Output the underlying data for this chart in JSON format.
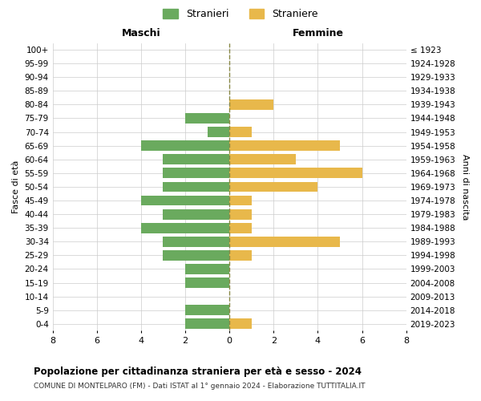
{
  "age_groups": [
    "0-4",
    "5-9",
    "10-14",
    "15-19",
    "20-24",
    "25-29",
    "30-34",
    "35-39",
    "40-44",
    "45-49",
    "50-54",
    "55-59",
    "60-64",
    "65-69",
    "70-74",
    "75-79",
    "80-84",
    "85-89",
    "90-94",
    "95-99",
    "100+"
  ],
  "birth_years": [
    "2019-2023",
    "2014-2018",
    "2009-2013",
    "2004-2008",
    "1999-2003",
    "1994-1998",
    "1989-1993",
    "1984-1988",
    "1979-1983",
    "1974-1978",
    "1969-1973",
    "1964-1968",
    "1959-1963",
    "1954-1958",
    "1949-1953",
    "1944-1948",
    "1939-1943",
    "1934-1938",
    "1929-1933",
    "1924-1928",
    "≤ 1923"
  ],
  "males": [
    2,
    2,
    0,
    2,
    2,
    3,
    3,
    4,
    3,
    4,
    3,
    3,
    3,
    4,
    1,
    2,
    0,
    0,
    0,
    0,
    0
  ],
  "females": [
    1,
    0,
    0,
    0,
    0,
    1,
    5,
    1,
    1,
    1,
    4,
    6,
    3,
    5,
    1,
    0,
    2,
    0,
    0,
    0,
    0
  ],
  "male_color": "#6aaa5e",
  "female_color": "#e8b84b",
  "background_color": "#ffffff",
  "grid_color": "#cccccc",
  "center_line_color": "#888844",
  "title": "Popolazione per cittadinanza straniera per età e sesso - 2024",
  "subtitle": "COMUNE DI MONTELPARO (FM) - Dati ISTAT al 1° gennaio 2024 - Elaborazione TUTTITALIA.IT",
  "xlabel_left": "Maschi",
  "xlabel_right": "Femmine",
  "ylabel_left": "Fasce di età",
  "ylabel_right": "Anni di nascita",
  "legend_stranieri": "Stranieri",
  "legend_straniere": "Straniere",
  "xlim": 8
}
